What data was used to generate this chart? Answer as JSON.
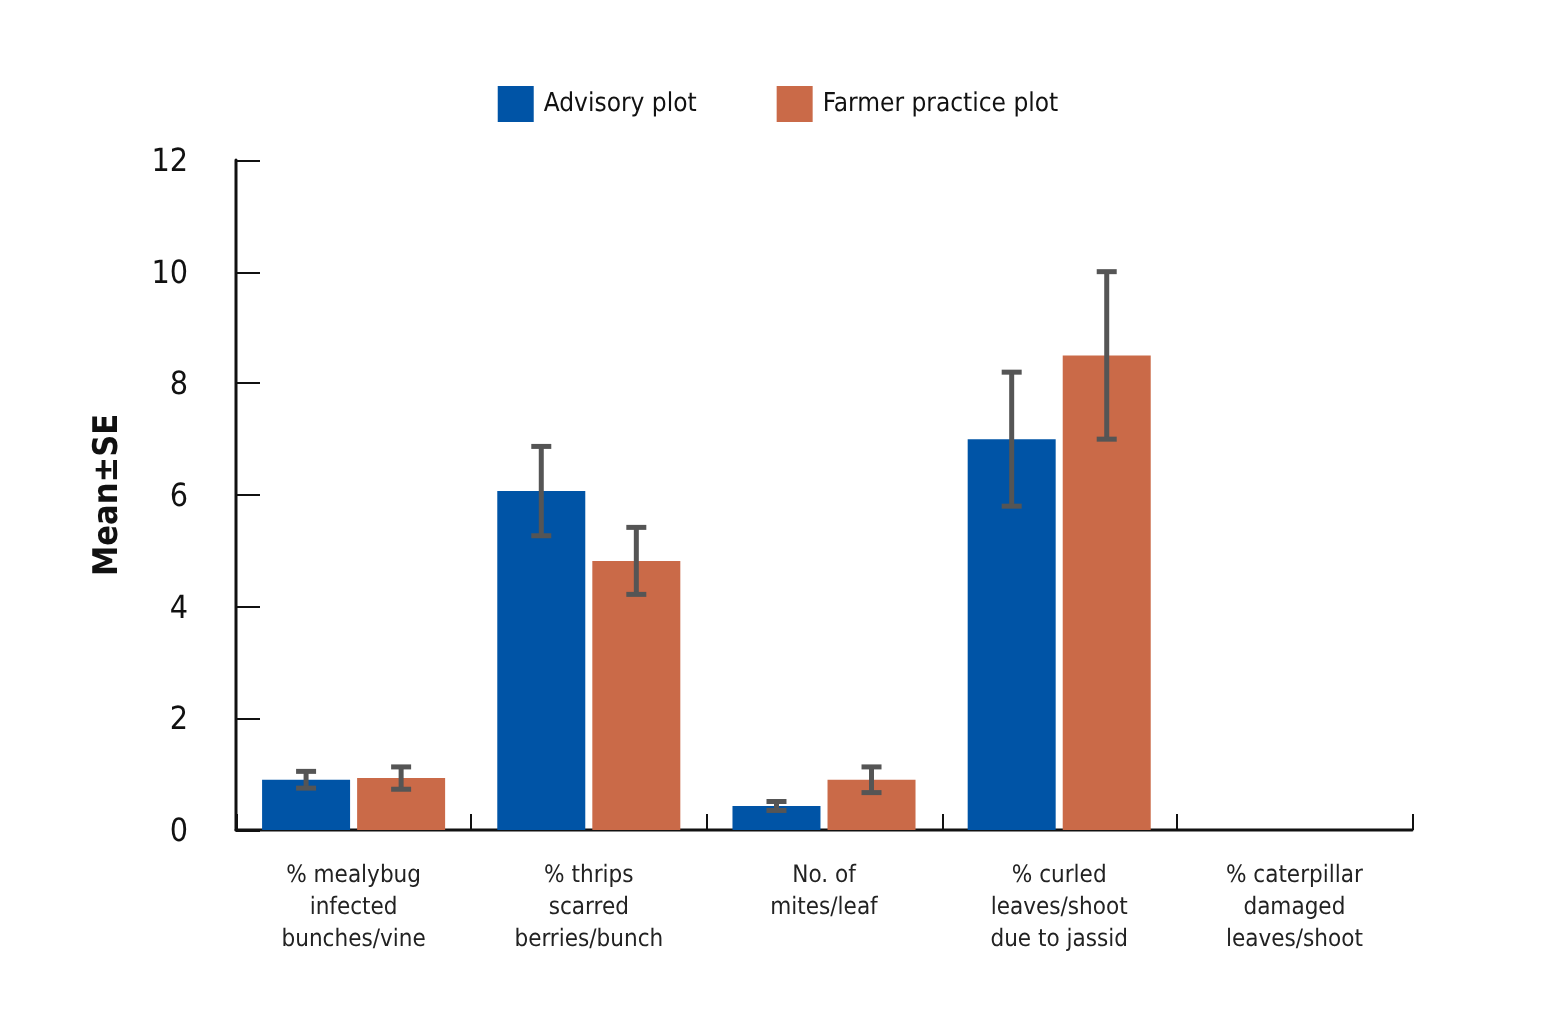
{
  "chart_data": {
    "type": "bar",
    "ylabel": "Mean±SE",
    "categories": [
      "% mealybug\ninfected\nbunches/vine",
      "% thrips\nscarred\nberries/bunch",
      "No. of\nmites/leaf",
      "% curled\nleaves/shoot\ndue to jassid",
      "% caterpillar\ndamaged\nleaves/shoot"
    ],
    "series": [
      {
        "name": "Advisory plot",
        "color": "#0054a6",
        "values": [
          0.9,
          6.07,
          0.43,
          7.0,
          0
        ],
        "errors": [
          0.15,
          0.8,
          0.08,
          1.2,
          null
        ]
      },
      {
        "name": "Farmer practice plot",
        "color": "#ca6a48",
        "values": [
          0.93,
          4.82,
          0.9,
          8.5,
          0
        ],
        "errors": [
          0.2,
          0.6,
          0.23,
          1.5,
          null
        ]
      }
    ],
    "ylim": [
      0,
      12
    ],
    "yticks": [
      0,
      2,
      4,
      6,
      8,
      10,
      12
    ],
    "grid": false,
    "legend": "top"
  }
}
